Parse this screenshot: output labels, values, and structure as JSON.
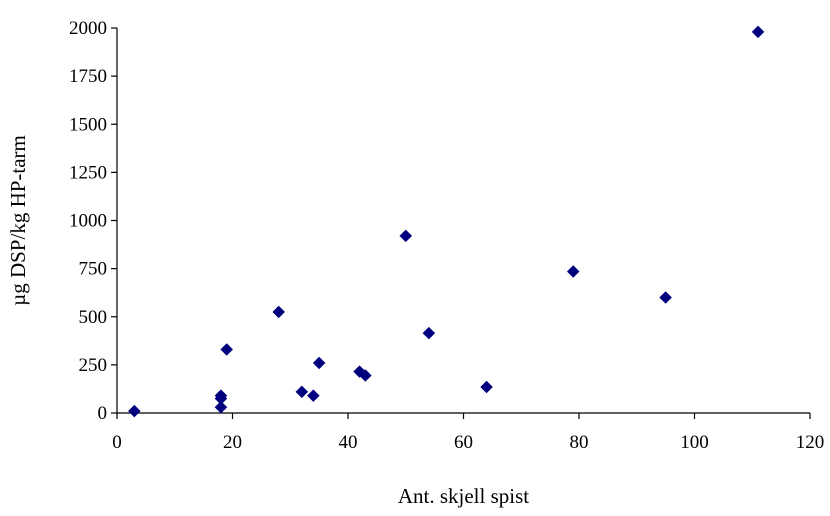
{
  "chart_data": {
    "type": "scatter",
    "title": "",
    "xlabel": "Ant. skjell spist",
    "ylabel": "µg DSP/kg HP-tarm",
    "xlim": [
      0,
      120
    ],
    "ylim": [
      0,
      2000
    ],
    "xticks": [
      "0",
      "20",
      "40",
      "60",
      "80",
      "100",
      "120"
    ],
    "yticks": [
      "0",
      "250",
      "500",
      "750",
      "1000",
      "1250",
      "1500",
      "1750",
      "2000"
    ],
    "marker": "diamond",
    "marker_color": "#00007F",
    "grid": false,
    "legend": "none",
    "points": [
      {
        "x": 3,
        "y": 10
      },
      {
        "x": 18,
        "y": 90
      },
      {
        "x": 18,
        "y": 75
      },
      {
        "x": 18,
        "y": 30
      },
      {
        "x": 19,
        "y": 330
      },
      {
        "x": 28,
        "y": 525
      },
      {
        "x": 32,
        "y": 110
      },
      {
        "x": 34,
        "y": 90
      },
      {
        "x": 35,
        "y": 260
      },
      {
        "x": 42,
        "y": 215
      },
      {
        "x": 43,
        "y": 195
      },
      {
        "x": 50,
        "y": 920
      },
      {
        "x": 54,
        "y": 415
      },
      {
        "x": 64,
        "y": 135
      },
      {
        "x": 79,
        "y": 735
      },
      {
        "x": 95,
        "y": 600
      },
      {
        "x": 111,
        "y": 1980
      }
    ]
  }
}
